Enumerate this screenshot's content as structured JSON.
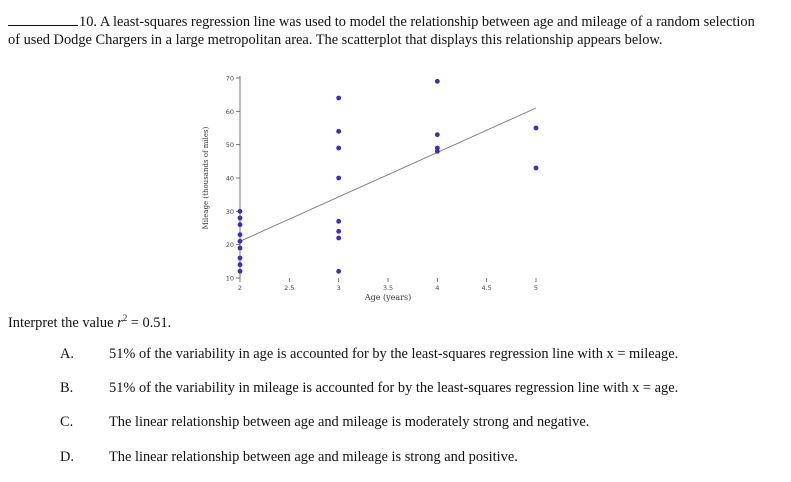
{
  "question": {
    "number": "10.",
    "text": "A least-squares regression line was used to model the relationship between age and mileage of a random selection of used Dodge Chargers in a large metropolitan area. The scatterplot that displays this relationship appears below."
  },
  "prompt": {
    "lead": "Interpret the value ",
    "r_symbol": "r",
    "sup": "2",
    "value": " = 0.51."
  },
  "choices": [
    {
      "letter": "A.",
      "text": "51% of the variability in age is accounted for by the least-squares regression line with x = mileage."
    },
    {
      "letter": "B.",
      "text": "51% of the variability in mileage is accounted for by the least-squares regression line with x = age."
    },
    {
      "letter": "C.",
      "text": "The linear relationship between age and mileage is moderately strong and negative."
    },
    {
      "letter": "D.",
      "text": "The linear relationship between age and mileage is strong and positive."
    }
  ],
  "chart_data": {
    "type": "scatter",
    "xlabel": "Age (years)",
    "ylabel": "Mileage (thousands of miles)",
    "xlim": [
      2,
      5
    ],
    "ylim": [
      10,
      70
    ],
    "xticks": [
      "2",
      "2.5",
      "3",
      "3.5",
      "4",
      "4.5",
      "5"
    ],
    "yticks": [
      "10",
      "20",
      "30",
      "40",
      "50",
      "60",
      "70"
    ],
    "points": [
      {
        "x": 2,
        "y": 12
      },
      {
        "x": 2,
        "y": 14
      },
      {
        "x": 2,
        "y": 16
      },
      {
        "x": 2,
        "y": 19
      },
      {
        "x": 2,
        "y": 21
      },
      {
        "x": 2,
        "y": 23
      },
      {
        "x": 2,
        "y": 26
      },
      {
        "x": 2,
        "y": 28
      },
      {
        "x": 2,
        "y": 30
      },
      {
        "x": 3,
        "y": 64
      },
      {
        "x": 3,
        "y": 54
      },
      {
        "x": 3,
        "y": 49
      },
      {
        "x": 3,
        "y": 40
      },
      {
        "x": 3,
        "y": 27
      },
      {
        "x": 3,
        "y": 24
      },
      {
        "x": 3,
        "y": 22
      },
      {
        "x": 3,
        "y": 12
      },
      {
        "x": 4,
        "y": 69
      },
      {
        "x": 4,
        "y": 53
      },
      {
        "x": 4,
        "y": 49
      },
      {
        "x": 4,
        "y": 48
      },
      {
        "x": 5,
        "y": 55
      },
      {
        "x": 5,
        "y": 43
      }
    ],
    "regression_line": {
      "x": [
        2,
        5
      ],
      "y": [
        21,
        61
      ]
    },
    "colors": {
      "points": "#3a2cc4",
      "line": "#777777",
      "axes": "#555555"
    }
  }
}
